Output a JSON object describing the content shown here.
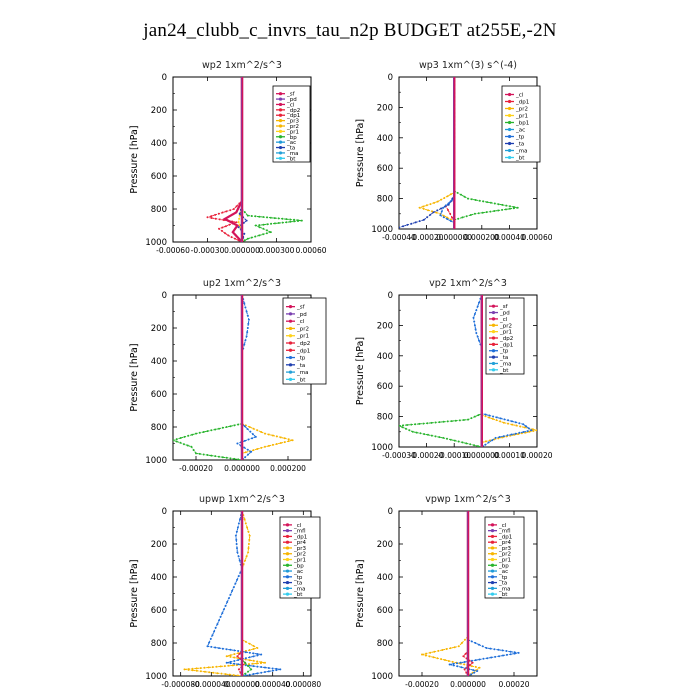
{
  "title": "jan24_clubb_c_invrs_tau_n2p  BUDGET at255E,-2N",
  "colors": {
    "sf": "#d4145a",
    "pd": "#7a3fb0",
    "cl": "#d4145a",
    "dp2": "#e8213a",
    "dp1": "#e8213a",
    "pr3": "#f7b500",
    "pr2": "#f7b500",
    "pr1": "#ffd21a",
    "bp": "#28b42d",
    "ac": "#1f9bd9",
    "tp": "#1f6fd9",
    "ta": "#1f3fb0",
    "ma": "#22a0d8",
    "bt": "#33ccee",
    "mfl": "#7a3fb0",
    "pr4": "#e8213a"
  },
  "chart_data": [
    {
      "type": "line",
      "title": "wp2  1xm^2/s^3",
      "ylabel": "Pressure [hPa]",
      "ylim": [
        1000,
        0
      ],
      "yticks": [
        "0",
        "200",
        "400",
        "600",
        "800",
        "1000"
      ],
      "xlim": [
        -0.0006,
        0.0006
      ],
      "xticks": [
        "-0.00060",
        "-0.00030",
        "0.000000",
        "0.000300",
        "0.00060"
      ],
      "legend": [
        "_sf",
        "_pd",
        "_cl",
        "_dp2",
        "_dp1",
        "_pr3",
        "_pr2",
        "_pr1",
        "_bp",
        "_ac",
        "_ta",
        "_ma",
        "_bt"
      ],
      "series": [
        {
          "name": "_bp",
          "color": "#28b42d",
          "x": [
            0,
            0,
            0,
            5e-05,
            0.00052,
            0.00012,
            0.00025,
            5e-05,
            0
          ],
          "y": [
            0,
            700,
            800,
            840,
            870,
            900,
            940,
            980,
            1000
          ]
        },
        {
          "name": "_pr1",
          "color": "#ffd21a",
          "x": [
            0,
            0,
            0,
            -2e-05,
            -3e-05,
            0,
            0
          ],
          "y": [
            0,
            700,
            800,
            840,
            880,
            940,
            1000
          ]
        },
        {
          "name": "_dp1",
          "color": "#e8213a",
          "x": [
            0,
            0,
            -7e-05,
            -0.0003,
            -5e-05,
            -0.0002,
            -0.00012,
            0
          ],
          "y": [
            0,
            750,
            800,
            850,
            880,
            920,
            960,
            1000
          ]
        },
        {
          "name": "_cl",
          "color": "#d4145a",
          "x": [
            0,
            0,
            -5e-05,
            -0.00015,
            -4e-05,
            -8e-05,
            0
          ],
          "y": [
            0,
            750,
            820,
            860,
            900,
            940,
            1000
          ]
        },
        {
          "name": "_ta",
          "color": "#1f3fb0",
          "x": [
            0,
            0,
            -2e-05,
            4e-05,
            -3e-05,
            2e-05,
            0
          ],
          "y": [
            0,
            780,
            830,
            870,
            910,
            950,
            1000
          ]
        },
        {
          "name": "_bt",
          "color": "#7a3fb0",
          "x": [
            0,
            0,
            0
          ],
          "y": [
            0,
            500,
            1000
          ]
        }
      ]
    },
    {
      "type": "line",
      "title": "wp3  1xm^(3) s^(-4)",
      "ylabel": "Pressure [hPa]",
      "ylim": [
        1000,
        0
      ],
      "yticks": [
        "0",
        "200",
        "400",
        "600",
        "800",
        "1000"
      ],
      "xlim": [
        -0.0004,
        0.0006
      ],
      "xticks": [
        "-0.00040",
        "-0.00020",
        "0.000000",
        "0.000200",
        "0.00040",
        "0.00060"
      ],
      "legend": [
        "_cl",
        "_dp1",
        "_pr2",
        "_pr1",
        "_bp1",
        "_ac",
        "_tp",
        "_ta",
        "_ma",
        "_bt"
      ],
      "series": [
        {
          "name": "_bp1",
          "color": "#28b42d",
          "x": [
            0,
            0,
            0.0001,
            0.00046,
            0.00015,
            0
          ],
          "y": [
            0,
            750,
            800,
            860,
            900,
            940
          ]
        },
        {
          "name": "_pr1",
          "color": "#f7b500",
          "x": [
            0,
            0,
            -0.00012,
            -0.00025,
            -0.0001,
            0
          ],
          "y": [
            0,
            760,
            820,
            860,
            900,
            950
          ]
        },
        {
          "name": "_dp1",
          "color": "#e8213a",
          "x": [
            0,
            0,
            -6e-05,
            -3e-05,
            0
          ],
          "y": [
            0,
            800,
            850,
            900,
            950
          ]
        },
        {
          "name": "_tp",
          "color": "#1f3fb0",
          "x": [
            0,
            0,
            -4e-05,
            -0.00015,
            -0.00022,
            -0.0004
          ],
          "y": [
            0,
            780,
            840,
            890,
            940,
            990
          ]
        },
        {
          "name": "_ta",
          "color": "#1f6fd9",
          "x": [
            0,
            0,
            -8e-05,
            -0.0001,
            0
          ],
          "y": [
            0,
            800,
            860,
            910,
            960
          ]
        },
        {
          "name": "_cl",
          "color": "#d4145a",
          "x": [
            0,
            0,
            0
          ],
          "y": [
            0,
            500,
            1000
          ]
        }
      ]
    },
    {
      "type": "line",
      "title": "up2  1xm^2/s^3",
      "ylabel": "Pressure [hPa]",
      "ylim": [
        1000,
        0
      ],
      "yticks": [
        "0",
        "200",
        "400",
        "600",
        "800",
        "1000"
      ],
      "xlim": [
        -0.0003,
        0.0003
      ],
      "xticks": [
        "-0.00020",
        "0.000000",
        "0.000200"
      ],
      "legend": [
        "_sf",
        "_pd",
        "_cl",
        "_pr2",
        "_pr1",
        "_dp2",
        "_dp1",
        "_tp",
        "_ta",
        "_ma",
        "_bt"
      ],
      "series": [
        {
          "name": "_dp2",
          "color": "#28b42d",
          "x": [
            0,
            0,
            -0.0002,
            -0.0003,
            -0.00022,
            -0.0002,
            0
          ],
          "y": [
            0,
            780,
            840,
            880,
            920,
            960,
            1000
          ]
        },
        {
          "name": "_pr1",
          "color": "#f7b500",
          "x": [
            0,
            0,
            0.0001,
            0.00022,
            0.0001,
            0
          ],
          "y": [
            0,
            780,
            840,
            880,
            920,
            960
          ]
        },
        {
          "name": "_ta",
          "color": "#1f6fd9",
          "x": [
            0,
            3e-05,
            2e-05,
            0,
            0,
            6e-05,
            -2e-05,
            4e-05,
            0
          ],
          "y": [
            0,
            150,
            250,
            350,
            780,
            860,
            900,
            950,
            1000
          ]
        },
        {
          "name": "_cl",
          "color": "#d4145a",
          "x": [
            0,
            0,
            0
          ],
          "y": [
            0,
            500,
            1000
          ]
        }
      ]
    },
    {
      "type": "line",
      "title": "vp2  1xm^2/s^3",
      "ylabel": "Pressure [hPa]",
      "ylim": [
        1000,
        0
      ],
      "yticks": [
        "0",
        "200",
        "400",
        "600",
        "800",
        "1000"
      ],
      "xlim": [
        -0.0003,
        0.0002
      ],
      "xticks": [
        "-0.00030",
        "-0.00020",
        "-0.00010",
        "0.000000",
        "0.00010",
        "0.00020"
      ],
      "legend": [
        "_sf",
        "_pd",
        "_cl",
        "_pr2",
        "_pr1",
        "_dp2",
        "_dp1",
        "_tp",
        "_ta",
        "_ma",
        "_bt"
      ],
      "series": [
        {
          "name": "_dp2",
          "color": "#28b42d",
          "x": [
            0,
            0,
            -5e-05,
            -0.0003,
            -0.00025,
            -0.00014,
            0
          ],
          "y": [
            0,
            780,
            820,
            860,
            900,
            940,
            1000
          ]
        },
        {
          "name": "_pr1",
          "color": "#f7b500",
          "x": [
            0,
            0,
            8e-05,
            0.0002,
            9e-05,
            0
          ],
          "y": [
            0,
            790,
            840,
            890,
            930,
            970
          ]
        },
        {
          "name": "_ta",
          "color": "#1f6fd9",
          "x": [
            0,
            -3e-05,
            -2e-05,
            0,
            0,
            0.00015,
            0.00018,
            5e-05,
            0
          ],
          "y": [
            0,
            150,
            250,
            350,
            780,
            850,
            890,
            940,
            1000
          ]
        },
        {
          "name": "_cl",
          "color": "#d4145a",
          "x": [
            0,
            0,
            0
          ],
          "y": [
            0,
            500,
            1000
          ]
        }
      ]
    },
    {
      "type": "line",
      "title": "upwp  1xm^2/s^3",
      "ylabel": "Pressure [hPa]",
      "ylim": [
        1000,
        0
      ],
      "yticks": [
        "0",
        "200",
        "400",
        "600",
        "800",
        "1000"
      ],
      "xlim": [
        -9e-05,
        9e-05
      ],
      "xticks": [
        "-0.000080",
        "-0.000040",
        "0.000000",
        "0.000040",
        "0.000080"
      ],
      "legend": [
        "_cl",
        "_mfl",
        "_dp1",
        "_pr4",
        "_pr3",
        "_pr2",
        "_pr1",
        "_bp",
        "_ac",
        "_tp",
        "_ta",
        "_ma",
        "_bt"
      ],
      "series": [
        {
          "name": "_pr1",
          "color": "#f7b500",
          "x": [
            0,
            1e-05,
            8e-06,
            0,
            0,
            2e-05,
            -2e-05,
            3e-05,
            -7.5e-05,
            0
          ],
          "y": [
            0,
            150,
            250,
            350,
            780,
            830,
            880,
            920,
            960,
            1000
          ]
        },
        {
          "name": "_tp",
          "color": "#1f6fd9",
          "x": [
            0,
            -8e-06,
            -6e-06,
            0,
            -4.5e-05,
            2.5e-05,
            -2e-05,
            5e-05,
            0
          ],
          "y": [
            0,
            150,
            250,
            350,
            820,
            870,
            920,
            960,
            1000
          ]
        },
        {
          "name": "_dp1",
          "color": "#e8213a",
          "x": [
            0,
            0,
            -6e-06,
            4e-06,
            -4e-06,
            0
          ],
          "y": [
            0,
            850,
            880,
            920,
            960,
            1000
          ]
        },
        {
          "name": "_bp",
          "color": "#28b42d",
          "x": [
            0,
            0,
            1.2e-05,
            0
          ],
          "y": [
            0,
            900,
            960,
            1000
          ]
        },
        {
          "name": "_cl",
          "color": "#7a3fb0",
          "x": [
            0,
            0,
            0
          ],
          "y": [
            0,
            500,
            1000
          ]
        }
      ]
    },
    {
      "type": "line",
      "title": "vpwp  1xm^2/s^3",
      "ylabel": "Pressure [hPa]",
      "ylim": [
        1000,
        0
      ],
      "yticks": [
        "0",
        "200",
        "400",
        "600",
        "800",
        "1000"
      ],
      "xlim": [
        -0.0003,
        0.0003
      ],
      "xticks": [
        "-0.00020",
        "0.000000",
        "0.00020"
      ],
      "legend": [
        "_cl",
        "_mfl",
        "_dp1",
        "_pr4",
        "_pr3",
        "_pr2",
        "_pr1",
        "_bp",
        "_ac",
        "_tp",
        "_ta",
        "_ma",
        "_bt"
      ],
      "series": [
        {
          "name": "_pr1",
          "color": "#f7b500",
          "x": [
            0,
            0,
            -4e-05,
            -0.0002,
            -5e-05,
            5e-05,
            2e-05,
            0
          ],
          "y": [
            0,
            760,
            820,
            870,
            920,
            950,
            980,
            1000
          ]
        },
        {
          "name": "_tp",
          "color": "#1f6fd9",
          "x": [
            0,
            0,
            8e-05,
            0.00022,
            5e-05,
            -8e-05,
            4e-05,
            0
          ],
          "y": [
            0,
            780,
            830,
            860,
            900,
            930,
            970,
            1000
          ]
        },
        {
          "name": "_dp1",
          "color": "#e8213a",
          "x": [
            0,
            0,
            -2e-05,
            2e-05,
            -1.5e-05,
            0
          ],
          "y": [
            0,
            850,
            880,
            920,
            960,
            1000
          ]
        },
        {
          "name": "_cl",
          "color": "#7a3fb0",
          "x": [
            0,
            0,
            0
          ],
          "y": [
            0,
            500,
            1000
          ]
        }
      ]
    }
  ]
}
